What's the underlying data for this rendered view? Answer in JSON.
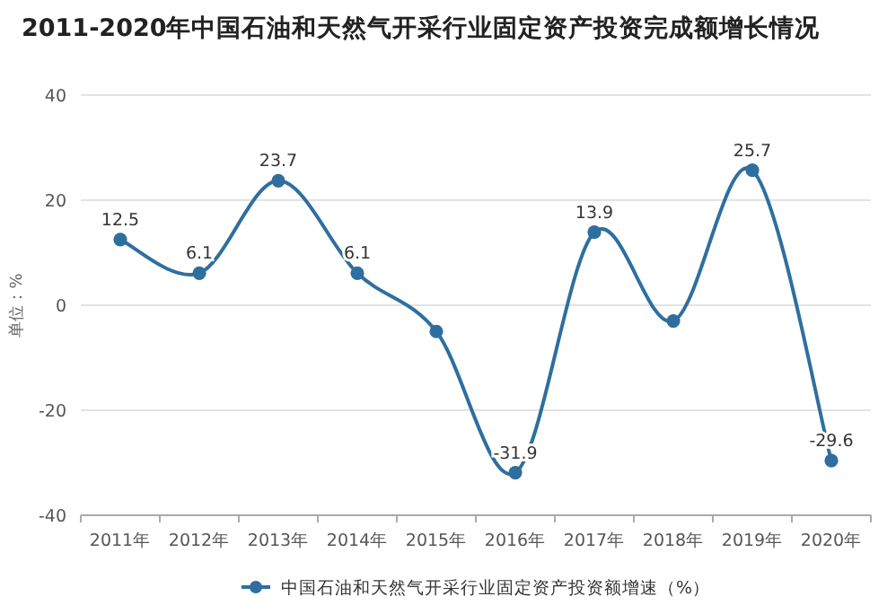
{
  "chart_data": {
    "type": "line",
    "title": "2011-2020年中国石油和天然气开采行业固定资产投资完成额增长情况",
    "ylabel": "单位：%",
    "categories": [
      "2011年",
      "2012年",
      "2013年",
      "2014年",
      "2015年",
      "2016年",
      "2017年",
      "2018年",
      "2019年",
      "2020年"
    ],
    "series": [
      {
        "name": "中国石油和天然气开采行业固定资产投资额增速（%）",
        "color": "#2f6f9f",
        "values": [
          12.5,
          6.1,
          23.7,
          6.1,
          -5,
          -31.9,
          13.9,
          -3,
          25.7,
          -29.6
        ],
        "value_labels": [
          "12.5",
          "6.1",
          "23.7",
          "6.1",
          null,
          "-31.9",
          "13.9",
          null,
          "25.7",
          "-29.6"
        ]
      }
    ],
    "ylim": [
      -40,
      40
    ],
    "yticks": [
      -40,
      -20,
      0,
      20,
      40
    ],
    "grid": "y",
    "legend": "bottom",
    "marker": "circle",
    "line_style": "solid"
  }
}
